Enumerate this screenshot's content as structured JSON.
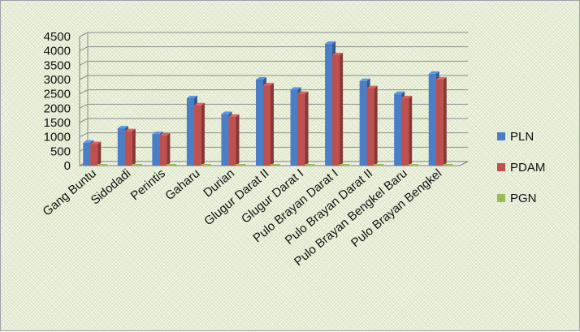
{
  "chart_data": {
    "type": "bar",
    "categories": [
      "Gang Buntu",
      "Sidodadi",
      "Perintis",
      "Gaharu",
      "Durian",
      "Glugur Darat II",
      "Glugur Darat I",
      "Pulo Brayan Darat I",
      "Pulo Brayan Darat II",
      "Pulo Brayan Bengkel Baru",
      "Pulo Brayan Bengkel"
    ],
    "series": [
      {
        "name": "PLN",
        "color": "#4a7ec6",
        "values": [
          800,
          1300,
          1100,
          2350,
          1800,
          3000,
          2650,
          4250,
          2950,
          2500,
          3200
        ]
      },
      {
        "name": "PDAM",
        "color": "#c0504d",
        "values": [
          750,
          1200,
          1050,
          2100,
          1700,
          2800,
          2500,
          3850,
          2700,
          2350,
          3000
        ]
      },
      {
        "name": "PGN",
        "color": "#9bbb59",
        "values": [
          0,
          0,
          0,
          0,
          0,
          0,
          0,
          0,
          0,
          0,
          0
        ]
      }
    ],
    "yticks": [
      "4500",
      "4000",
      "3500",
      "3000",
      "2500",
      "2000",
      "1500",
      "1000",
      "500",
      "0"
    ],
    "ylim": [
      0,
      4500
    ],
    "grid": true,
    "legend_position": "right",
    "title": "",
    "xlabel": "",
    "ylabel": ""
  }
}
